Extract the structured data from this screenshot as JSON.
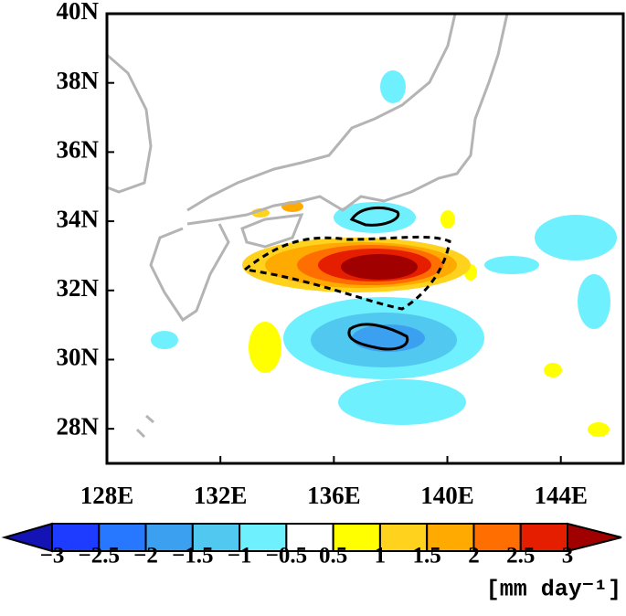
{
  "map": {
    "xlim": [
      128,
      146.2
    ],
    "ylim": [
      27,
      40
    ],
    "xticks": [
      {
        "value": 128,
        "label": "128E"
      },
      {
        "value": 132,
        "label": "132E"
      },
      {
        "value": 136,
        "label": "136E"
      },
      {
        "value": 140,
        "label": "140E"
      },
      {
        "value": 144,
        "label": "144E"
      }
    ],
    "yticks": [
      {
        "value": 28,
        "label": "28N"
      },
      {
        "value": 30,
        "label": "30N"
      },
      {
        "value": 32,
        "label": "32N"
      },
      {
        "value": 34,
        "label": "34N"
      },
      {
        "value": 36,
        "label": "36N"
      },
      {
        "value": 38,
        "label": "38N"
      },
      {
        "value": 40,
        "label": "40N"
      }
    ],
    "colorbar": {
      "levels": [
        {
          "value": -3,
          "label": "−3"
        },
        {
          "value": -2.5,
          "label": "−2.5"
        },
        {
          "value": -2,
          "label": "−2"
        },
        {
          "value": -1.5,
          "label": "−1.5"
        },
        {
          "value": -1,
          "label": "−1"
        },
        {
          "value": -0.5,
          "label": "−0.5"
        },
        {
          "value": 0.5,
          "label": "0.5"
        },
        1,
        1.5,
        2,
        2.5,
        3
      ],
      "colors": [
        "#1414b4",
        "#1e3cff",
        "#2878ff",
        "#3ca0f0",
        "#50c8f0",
        "#6ef0ff",
        "#ffffff",
        "#ffff00",
        "#ffd21e",
        "#ffaa00",
        "#ff6e00",
        "#e61e00",
        "#a00000"
      ],
      "unit": "[mm day⁻¹]"
    }
  }
}
